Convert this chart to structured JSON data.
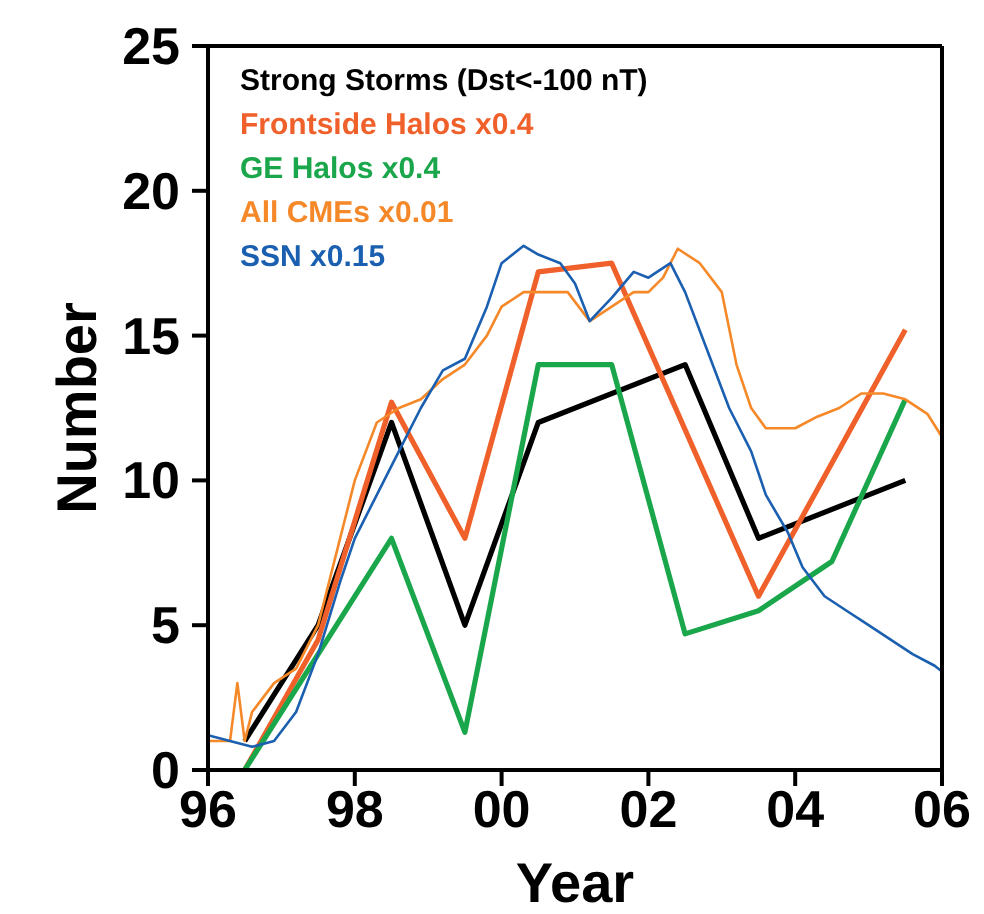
{
  "chart_data": {
    "type": "line",
    "xlabel": "Year",
    "ylabel": "Number",
    "xlim": [
      1996,
      2006
    ],
    "xticks": [
      {
        "value": 1996,
        "label": "96"
      },
      {
        "value": 1998,
        "label": "98"
      },
      {
        "value": 2000,
        "label": "00"
      },
      {
        "value": 2002,
        "label": "02"
      },
      {
        "value": 2004,
        "label": "04"
      },
      {
        "value": 2006,
        "label": "06"
      }
    ],
    "ylim": [
      0,
      25
    ],
    "yticks": [
      0,
      5,
      10,
      15,
      20,
      25
    ],
    "legend": "top left",
    "grid": false,
    "marker": "none",
    "line_style": "solid",
    "series": [
      {
        "name": "Strong Storms (Dst<-100 nT)",
        "color": "#000000",
        "x": [
          1996.5,
          1997.5,
          1998.5,
          1999.5,
          2000.5,
          2002.5,
          2003.5,
          2005.5
        ],
        "values": [
          1,
          5,
          12,
          5,
          12,
          14,
          8,
          10
        ]
      },
      {
        "name": "Frontside Halos x0.4",
        "color": "#f0602a",
        "x": [
          1996.5,
          1997.5,
          1998.5,
          1999.5,
          2000.5,
          2001.5,
          2003.5,
          2005.5
        ],
        "values": [
          0,
          4.5,
          12.7,
          8,
          17.2,
          17.5,
          6,
          15.2
        ]
      },
      {
        "name": "GE Halos x0.4",
        "color": "#1aa64a",
        "x": [
          1996.5,
          1998.5,
          1999.5,
          2000.5,
          2001.5,
          2002.5,
          2003.5,
          2004.5,
          2005.5
        ],
        "values": [
          0,
          8,
          1.3,
          14,
          14,
          4.7,
          5.5,
          7.2,
          12.8
        ]
      },
      {
        "name": "All CMEs x0.01",
        "color": "#f5892a",
        "x": [
          1996.0,
          1996.3,
          1996.4,
          1996.5,
          1996.6,
          1996.9,
          1997.2,
          1997.5,
          1997.8,
          1998.0,
          1998.3,
          1998.6,
          1998.9,
          1999.2,
          1999.5,
          1999.8,
          2000.0,
          2000.3,
          2000.6,
          2000.9,
          2001.2,
          2001.5,
          2001.8,
          2002.0,
          2002.2,
          2002.4,
          2002.7,
          2003.0,
          2003.2,
          2003.4,
          2003.6,
          2004.0,
          2004.3,
          2004.6,
          2004.9,
          2005.2,
          2005.5,
          2005.8,
          2006.0
        ],
        "values": [
          1.0,
          1.0,
          3.0,
          1.0,
          2.0,
          3.0,
          3.5,
          5.0,
          8.0,
          10.0,
          12.0,
          12.5,
          12.8,
          13.5,
          14.0,
          15.0,
          16.0,
          16.5,
          16.5,
          16.5,
          15.5,
          16.0,
          16.5,
          16.5,
          17.0,
          18.0,
          17.5,
          16.5,
          14.0,
          12.5,
          11.8,
          11.8,
          12.2,
          12.5,
          13.0,
          13.0,
          12.8,
          12.3,
          11.5
        ]
      },
      {
        "name": "SSN x0.15",
        "color": "#1a5fb0",
        "x": [
          1996.0,
          1996.3,
          1996.6,
          1996.9,
          1997.2,
          1997.5,
          1997.8,
          1998.0,
          1998.3,
          1998.6,
          1998.9,
          1999.2,
          1999.5,
          1999.8,
          2000.0,
          2000.3,
          2000.5,
          2000.8,
          2001.0,
          2001.2,
          2001.5,
          2001.8,
          2002.0,
          2002.3,
          2002.5,
          2002.8,
          2003.1,
          2003.4,
          2003.6,
          2003.9,
          2004.1,
          2004.4,
          2004.7,
          2005.0,
          2005.3,
          2005.6,
          2005.9,
          2006.0
        ],
        "values": [
          1.2,
          1.0,
          0.8,
          1.0,
          2.0,
          4.0,
          6.5,
          8.0,
          9.5,
          11,
          12.5,
          13.8,
          14.2,
          16,
          17.5,
          18.1,
          17.8,
          17.5,
          16.8,
          15.5,
          16.3,
          17.2,
          17.0,
          17.5,
          16.5,
          14.5,
          12.5,
          11.0,
          9.5,
          8.2,
          7.0,
          6.0,
          5.5,
          5.0,
          4.5,
          4.0,
          3.6,
          3.4
        ]
      }
    ]
  }
}
